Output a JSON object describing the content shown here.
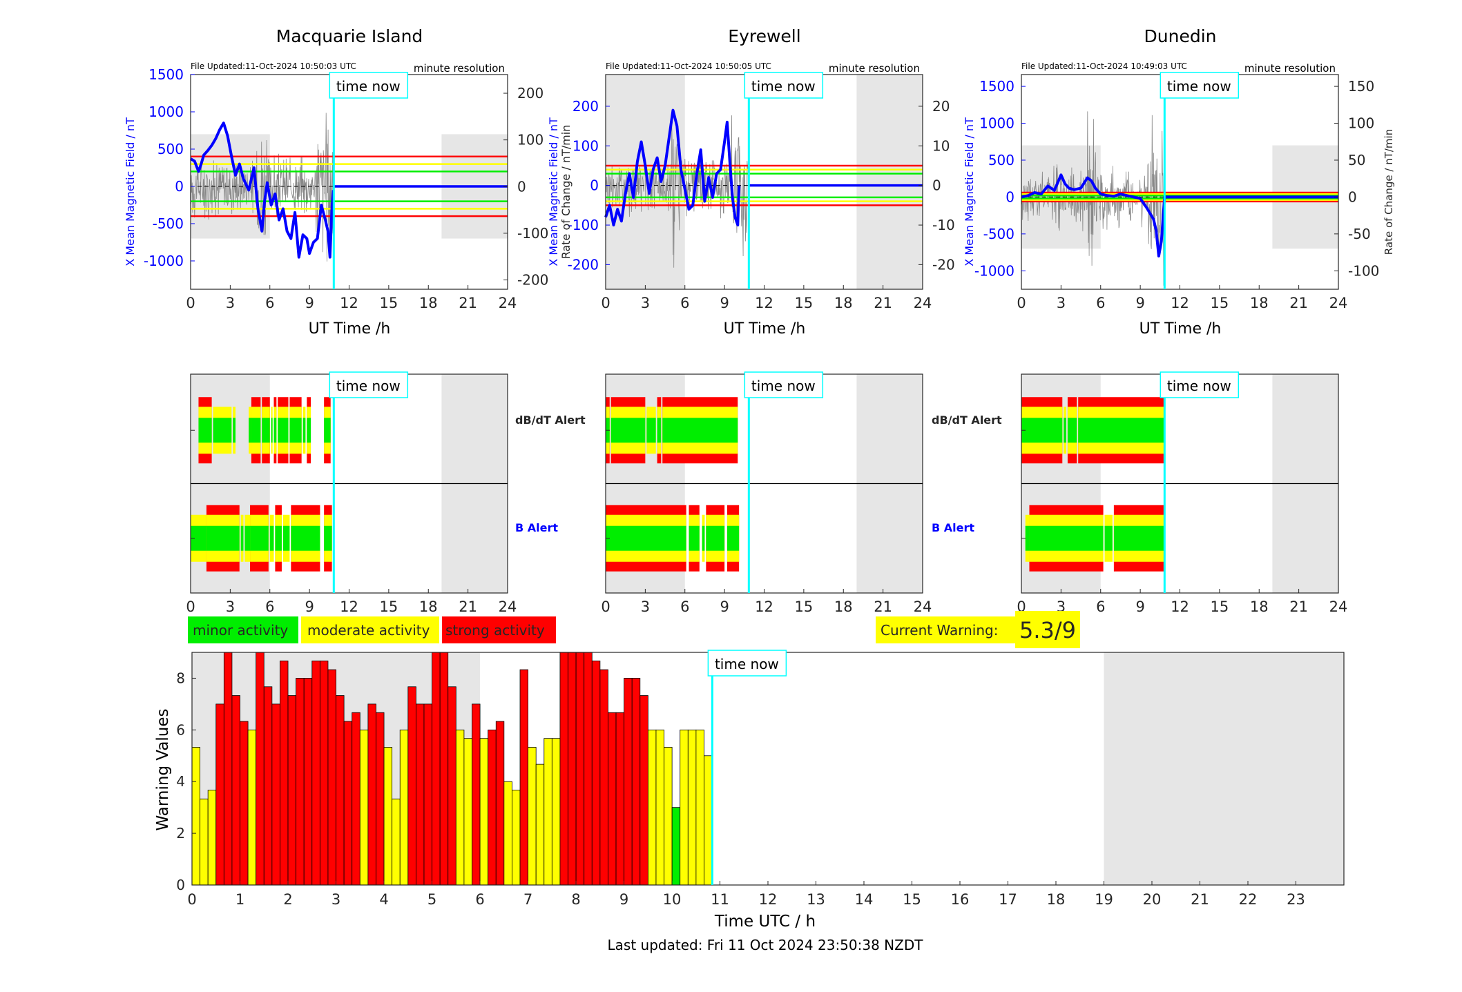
{
  "colors": {
    "green": "#00ee00",
    "yellow": "#ffff00",
    "red": "#ff0000",
    "blue": "#0000ff",
    "cyan": "#00ffff",
    "shade": "#e6e6e6",
    "axis": "#262626"
  },
  "common": {
    "time_now_label": "time now",
    "time_now_h": 10.84,
    "res_label": "minute resolution",
    "ut_xlabel": "UT Time /h",
    "x_ticks": [
      0,
      3,
      6,
      9,
      12,
      15,
      18,
      21,
      24
    ],
    "shaded_ranges_h": [
      [
        0,
        6
      ],
      [
        19,
        24
      ]
    ],
    "dbdt_alert_label": "dB/dT Alert",
    "b_alert_label": "B Alert"
  },
  "legend": {
    "minor": "minor activity",
    "moderate": "moderate activity",
    "strong": "strong activity"
  },
  "warning": {
    "label": "Current Warning:",
    "value": "5.3/9"
  },
  "footer": {
    "updated": "Last updated: Fri 11 Oct 2024 23:50:38 NZDT"
  },
  "chart_data": [
    {
      "type": "line",
      "station": "Macquarie Island",
      "file_updated": "File Updated:11-Oct-2024 10:50:03 UTC",
      "ylabel_left": "X Mean Magnetic Field / nT",
      "ylabel_right": "",
      "ylim_left": [
        -1380,
        1500
      ],
      "left_ticks": [
        -1000,
        -500,
        0,
        500,
        1000,
        1500
      ],
      "ylim_right": [
        -220,
        240
      ],
      "right_ticks": [
        -200,
        -100,
        0,
        100,
        200
      ],
      "shade_ylim": [
        -700,
        700
      ],
      "thresholds": {
        "red": 400,
        "yellow": 300,
        "green": 200
      },
      "field_x_h": [
        0,
        0.3,
        0.6,
        0.8,
        1,
        1.3,
        1.6,
        1.9,
        2.2,
        2.5,
        2.8,
        3.1,
        3.4,
        3.7,
        4.0,
        4.4,
        4.8,
        5.1,
        5.4,
        5.6,
        5.8,
        6.1,
        6.4,
        6.7,
        7.0,
        7.3,
        7.6,
        7.9,
        8.2,
        8.5,
        8.8,
        9.0,
        9.3,
        9.6,
        9.9,
        10.2,
        10.4,
        10.55,
        10.7,
        10.8
      ],
      "field_y_nT": [
        370,
        340,
        200,
        300,
        420,
        480,
        550,
        640,
        760,
        850,
        680,
        400,
        150,
        300,
        100,
        -50,
        250,
        -300,
        -600,
        -200,
        50,
        -250,
        -100,
        -450,
        -300,
        -600,
        -700,
        -350,
        -950,
        -650,
        -700,
        -900,
        -750,
        -700,
        -250,
        -450,
        -600,
        -950,
        -300,
        -50
      ]
    },
    {
      "type": "line",
      "station": "Eyrewell",
      "file_updated": "File Updated:11-Oct-2024 10:50:05 UTC",
      "ylabel_left": "X Mean Magnetic Field / nT",
      "ylabel_right": "Rate of Change / nT/min",
      "ylim_left": [
        -262,
        280
      ],
      "left_ticks": [
        -200,
        -100,
        0,
        100,
        200
      ],
      "ylim_right": [
        -26.2,
        28
      ],
      "right_ticks": [
        -20,
        -10,
        0,
        10,
        20
      ],
      "shade_ylim": [
        -262,
        280
      ],
      "thresholds": {
        "red": 50,
        "yellow": 40,
        "green": 30
      },
      "field_x_h": [
        0,
        0.3,
        0.6,
        0.9,
        1.2,
        1.5,
        1.8,
        2.1,
        2.4,
        2.7,
        3.0,
        3.3,
        3.6,
        3.9,
        4.2,
        4.5,
        4.8,
        5.1,
        5.4,
        5.7,
        6.0,
        6.3,
        6.6,
        6.9,
        7.2,
        7.5,
        7.8,
        8.1,
        8.4,
        8.7,
        9.0,
        9.2,
        9.4,
        9.6,
        9.8,
        10.0,
        10.1
      ],
      "field_y_nT": [
        -80,
        -50,
        -100,
        -60,
        -90,
        -20,
        30,
        -30,
        60,
        110,
        50,
        -20,
        40,
        70,
        10,
        50,
        120,
        190,
        150,
        40,
        -10,
        -60,
        -50,
        30,
        90,
        -40,
        20,
        -30,
        30,
        40,
        110,
        160,
        60,
        -30,
        -80,
        -100,
        0
      ]
    },
    {
      "type": "line",
      "station": "Dunedin",
      "file_updated": "File Updated:11-Oct-2024 10:49:03 UTC",
      "ylabel_left": "X Mean Magnetic Field / nT",
      "ylabel_right": "Rate of Change / nT/min",
      "ylim_left": [
        -1250,
        1660
      ],
      "left_ticks": [
        -1000,
        -500,
        0,
        500,
        1000,
        1500
      ],
      "ylim_right": [
        -125,
        166
      ],
      "right_ticks": [
        -100,
        -50,
        0,
        50,
        100,
        150
      ],
      "shade_ylim": [
        -700,
        700
      ],
      "thresholds": {
        "red": 60,
        "yellow": 40,
        "green": 20
      },
      "field_x_h": [
        0,
        0.5,
        1.0,
        1.5,
        2.0,
        2.5,
        3.0,
        3.3,
        3.6,
        4.0,
        4.5,
        5.0,
        5.3,
        5.6,
        6.0,
        6.5,
        7.0,
        7.5,
        8.0,
        8.5,
        9.0,
        9.5,
        10.0,
        10.2,
        10.4,
        10.6,
        10.84,
        24
      ],
      "field_y_nT": [
        0,
        20,
        60,
        40,
        150,
        90,
        300,
        180,
        120,
        100,
        120,
        260,
        220,
        120,
        40,
        20,
        10,
        40,
        20,
        0,
        -20,
        -150,
        -300,
        -450,
        -800,
        -600,
        0,
        0
      ]
    }
  ],
  "alerts": {
    "stations": [
      {
        "dbdt_segments": [
          [
            0.6,
            1.6,
            3
          ],
          [
            1.7,
            3.1,
            2
          ],
          [
            3.2,
            3.4,
            2
          ],
          [
            4.4,
            4.6,
            2
          ],
          [
            4.6,
            5.3,
            3
          ],
          [
            5.4,
            6.0,
            3
          ],
          [
            6.1,
            6.2,
            2
          ],
          [
            6.3,
            6.5,
            3
          ],
          [
            6.6,
            7.4,
            3
          ],
          [
            7.5,
            8.4,
            3
          ],
          [
            8.5,
            8.7,
            2
          ],
          [
            8.8,
            9.1,
            3
          ],
          [
            10.1,
            10.6,
            3
          ]
        ],
        "b_segments": [
          [
            0,
            1.2,
            2
          ],
          [
            1.2,
            3.7,
            3
          ],
          [
            3.8,
            4.0,
            2
          ],
          [
            4.1,
            4.5,
            2
          ],
          [
            4.5,
            5.9,
            3
          ],
          [
            6.0,
            6.3,
            2
          ],
          [
            6.4,
            6.9,
            3
          ],
          [
            7.0,
            7.5,
            2
          ],
          [
            7.6,
            9.8,
            3
          ],
          [
            10.1,
            10.7,
            3
          ]
        ]
      },
      {
        "dbdt_segments": [
          [
            0,
            0.3,
            3
          ],
          [
            0.4,
            3.0,
            3
          ],
          [
            3.1,
            3.8,
            2
          ],
          [
            3.9,
            4.2,
            3
          ],
          [
            4.3,
            10.0,
            3
          ]
        ],
        "b_segments": [
          [
            0,
            6.1,
            3
          ],
          [
            6.3,
            7.1,
            3
          ],
          [
            7.3,
            7.5,
            2
          ],
          [
            7.6,
            9.0,
            3
          ],
          [
            9.2,
            10.1,
            3
          ]
        ]
      },
      {
        "dbdt_segments": [
          [
            0,
            3.1,
            3
          ],
          [
            3.2,
            3.4,
            2
          ],
          [
            3.5,
            4.2,
            3
          ],
          [
            4.3,
            10.9,
            3
          ]
        ],
        "b_segments": [
          [
            0.3,
            0.6,
            2
          ],
          [
            0.6,
            6.2,
            3
          ],
          [
            6.3,
            6.9,
            2
          ],
          [
            7.0,
            10.9,
            3
          ]
        ]
      }
    ]
  },
  "bar_chart": {
    "type": "bar",
    "xlabel": "Time UTC / h",
    "ylabel": "Warning Values",
    "x_ticks": [
      0,
      1,
      2,
      3,
      4,
      5,
      6,
      7,
      8,
      9,
      10,
      11,
      12,
      13,
      14,
      15,
      16,
      17,
      18,
      19,
      20,
      21,
      22,
      23
    ],
    "ylim": [
      0,
      9
    ],
    "y_ticks": [
      0,
      2,
      4,
      6,
      8
    ],
    "xlim": [
      0,
      24
    ],
    "bin_width_h": 0.1667,
    "shaded_ranges_h": [
      [
        0,
        6
      ],
      [
        19,
        24
      ]
    ],
    "values": [
      5.33,
      3.33,
      3.67,
      7.0,
      9.0,
      7.33,
      6.33,
      6.0,
      9.0,
      7.67,
      7.0,
      8.67,
      7.33,
      8.0,
      8.0,
      8.67,
      8.67,
      8.33,
      7.33,
      6.33,
      6.67,
      6.0,
      7.0,
      6.67,
      5.33,
      3.33,
      6.0,
      7.67,
      7.0,
      7.0,
      9.0,
      9.0,
      7.67,
      6.0,
      5.67,
      7.0,
      5.67,
      6.0,
      6.33,
      4.0,
      3.67,
      8.33,
      5.33,
      4.67,
      5.67,
      5.67,
      9.0,
      9.0,
      9.0,
      9.0,
      8.67,
      8.33,
      6.67,
      6.67,
      8.0,
      8.0,
      7.33,
      6.0,
      6.0,
      5.33,
      3.0,
      6.0,
      6.0,
      6.0,
      5.0
    ],
    "value_class": [
      "m",
      "m",
      "m",
      "s",
      "s",
      "s",
      "s",
      "m",
      "s",
      "s",
      "s",
      "s",
      "s",
      "s",
      "s",
      "s",
      "s",
      "s",
      "s",
      "s",
      "s",
      "m",
      "s",
      "s",
      "m",
      "m",
      "m",
      "s",
      "s",
      "s",
      "s",
      "s",
      "s",
      "m",
      "m",
      "s",
      "m",
      "s",
      "s",
      "m",
      "m",
      "s",
      "m",
      "m",
      "m",
      "m",
      "s",
      "s",
      "s",
      "s",
      "s",
      "s",
      "s",
      "s",
      "s",
      "s",
      "s",
      "m",
      "m",
      "m",
      "g",
      "m",
      "m",
      "m",
      "m"
    ]
  }
}
